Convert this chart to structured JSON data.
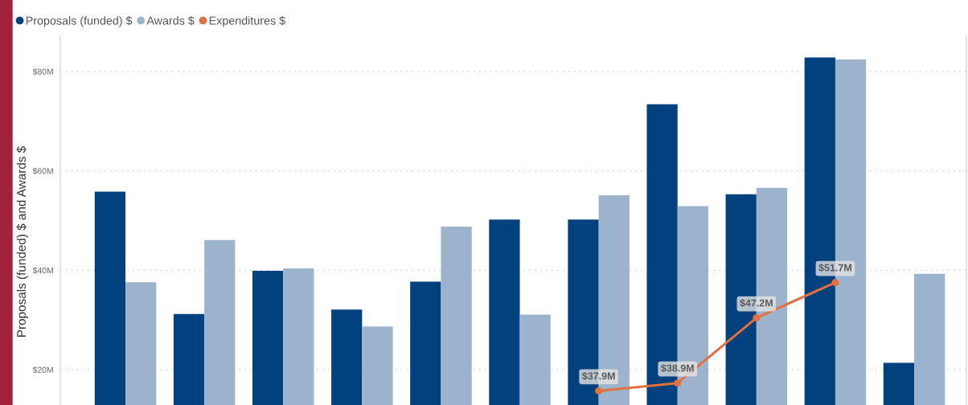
{
  "chart_data": {
    "type": "bar",
    "ylabel": "Proposals (funded) $ and Awards $",
    "categories": [
      null,
      null,
      null,
      null,
      null,
      null,
      null,
      null,
      null,
      null,
      null
    ],
    "series": [
      {
        "name": "Proposals (funded) $",
        "color": "#00417e",
        "values": [
          55.8,
          31.2,
          39.9,
          32.1,
          37.7,
          50.2,
          50.2,
          73.4,
          55.3,
          82.8,
          21.4
        ]
      },
      {
        "name": "Awards $",
        "color": "#9bb3cc",
        "values": [
          37.6,
          46.1,
          40.4,
          28.7,
          48.8,
          31.1,
          55.1,
          52.9,
          56.6,
          82.4,
          39.3
        ]
      },
      {
        "name": "Expenditures $",
        "type": "line",
        "axis": "y2",
        "color": "#e3703d",
        "marker": "circle",
        "line_style": "solid",
        "values": [
          null,
          null,
          null,
          null,
          null,
          null,
          37.9,
          38.9,
          47.2,
          51.7,
          null
        ],
        "value_labels": [
          null,
          null,
          null,
          null,
          null,
          null,
          "$37.9M",
          "$38.9M",
          "$47.2M",
          "$51.7M",
          null
        ]
      }
    ],
    "ylim": [
      12.9,
      87.1
    ],
    "yticks": [
      {
        "value": 20,
        "label": "$20M"
      },
      {
        "value": 40,
        "label": "$40M"
      },
      {
        "value": 60,
        "label": "$60M"
      },
      {
        "value": 80,
        "label": "$80M"
      }
    ],
    "y2lim": [
      36.1,
      83.1
    ],
    "grid": "y",
    "legend": "top left",
    "tick_labels": "y"
  }
}
